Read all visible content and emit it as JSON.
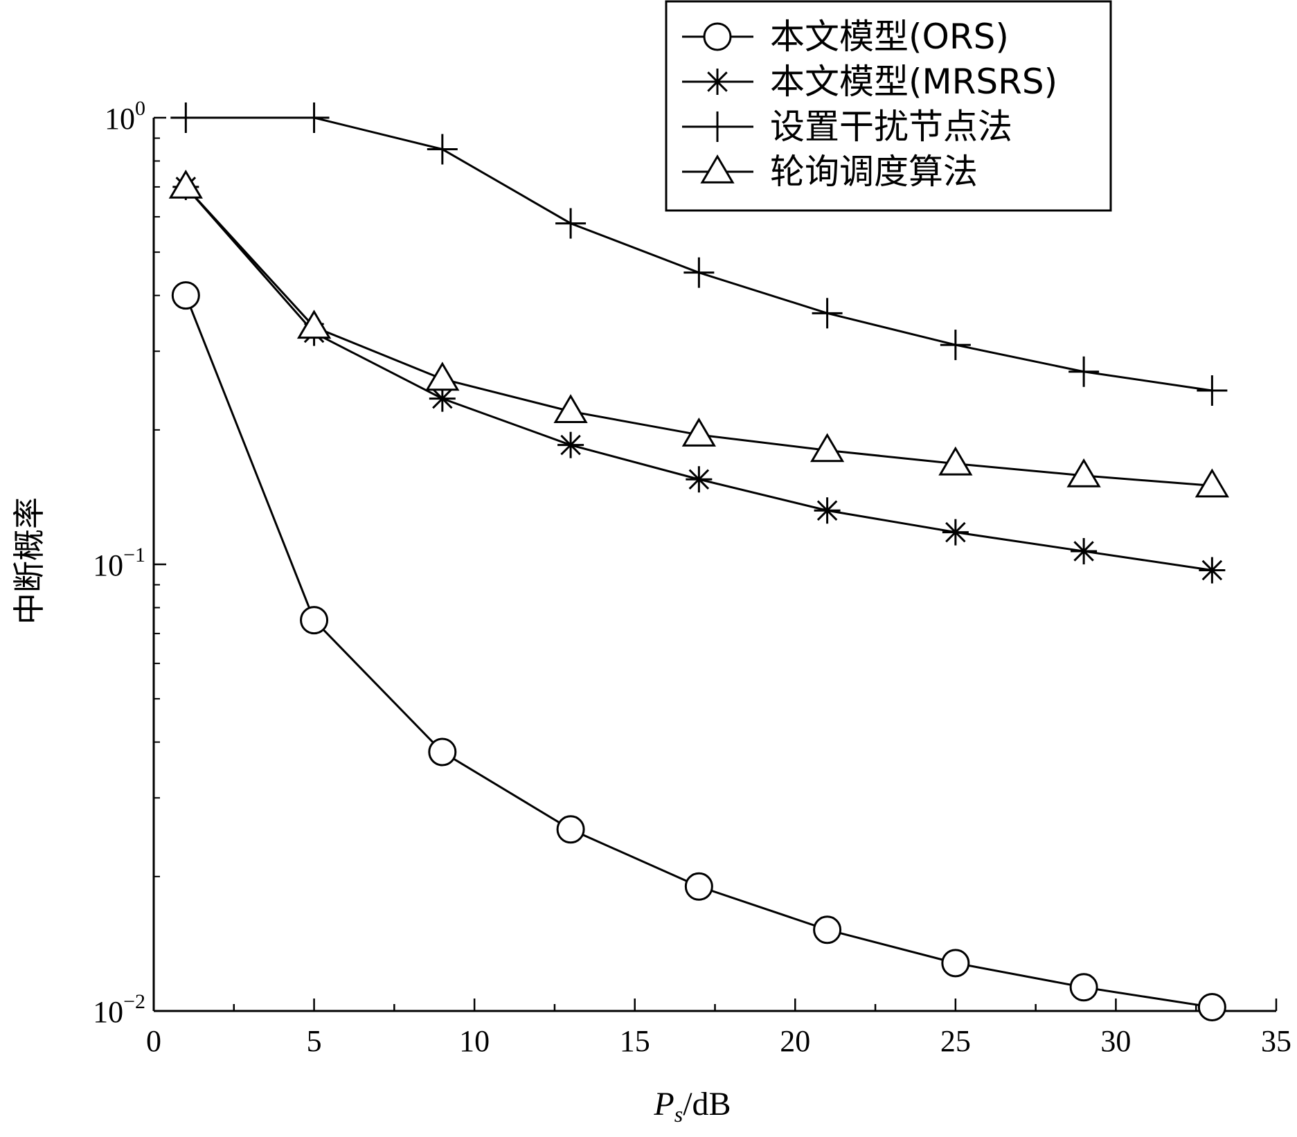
{
  "chart_data": {
    "type": "line",
    "title": "",
    "xlabel_main": "P",
    "xlabel_sub": "s",
    "xlabel_unit": "/dB",
    "ylabel": "中断概率",
    "x_ticks": [
      "0",
      "5",
      "10",
      "15",
      "20",
      "25",
      "30",
      "35"
    ],
    "y_ticks": [
      {
        "base": "10",
        "exp": "0",
        "value": 1
      },
      {
        "base": "10",
        "exp": "−1",
        "value": 0.1
      },
      {
        "base": "10",
        "exp": "−2",
        "value": 0.01
      }
    ],
    "xlim": [
      0,
      35
    ],
    "ylim": [
      0.01,
      1
    ],
    "yscale": "log",
    "grid": false,
    "legend_position": "top-right",
    "series": [
      {
        "name": "本文模型(ORS)",
        "marker": "circle",
        "x": [
          1,
          5,
          9,
          13,
          17,
          21,
          25,
          29,
          33
        ],
        "y": [
          0.4,
          0.075,
          0.038,
          0.0255,
          0.019,
          0.0152,
          0.0128,
          0.0113,
          0.0102
        ]
      },
      {
        "name": "本文模型(MRSRS)",
        "marker": "asterisk",
        "x": [
          1,
          5,
          9,
          13,
          17,
          21,
          25,
          29,
          33
        ],
        "y": [
          0.7,
          0.33,
          0.235,
          0.185,
          0.155,
          0.132,
          0.118,
          0.107,
          0.097
        ]
      },
      {
        "name": "设置干扰节点法",
        "marker": "plus",
        "x": [
          1,
          5,
          9,
          13,
          17,
          21,
          25,
          29,
          33
        ],
        "y": [
          1.0,
          1.0,
          0.85,
          0.58,
          0.45,
          0.365,
          0.31,
          0.27,
          0.245
        ]
      },
      {
        "name": "轮询调度算法",
        "marker": "triangle",
        "x": [
          1,
          5,
          9,
          13,
          17,
          21,
          25,
          29,
          33
        ],
        "y": [
          0.7,
          0.34,
          0.26,
          0.22,
          0.195,
          0.18,
          0.168,
          0.158,
          0.15
        ]
      }
    ]
  }
}
